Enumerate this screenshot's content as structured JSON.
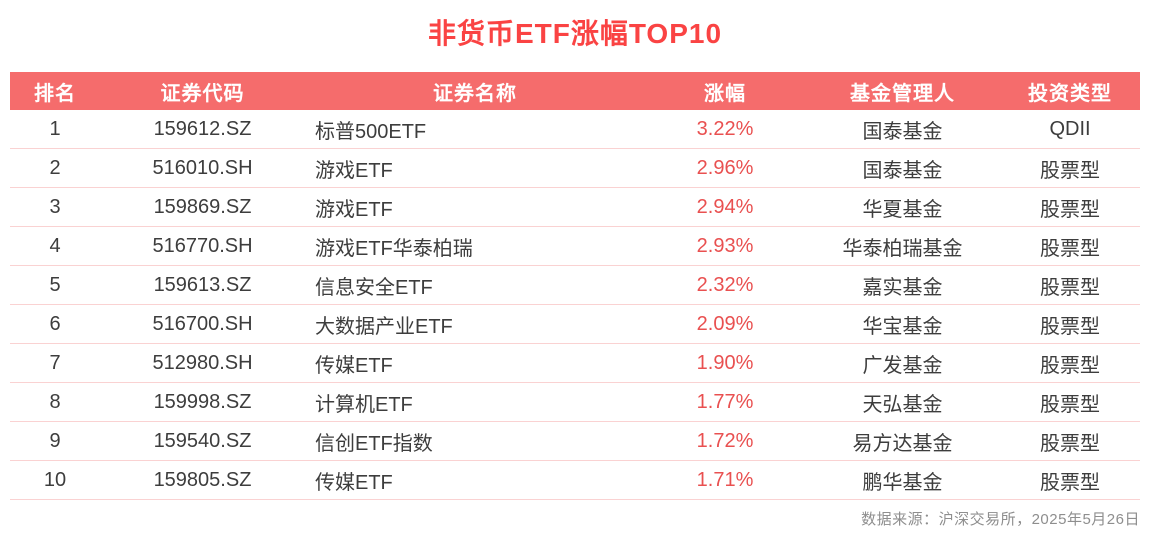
{
  "chart_data": {
    "type": "table",
    "title": "非货币ETF涨幅TOP10",
    "columns": [
      "排名",
      "证券代码",
      "证券名称",
      "涨幅",
      "基金管理人",
      "投资类型"
    ],
    "rows": [
      [
        "1",
        "159612.SZ",
        "标普500ETF",
        "3.22%",
        "国泰基金",
        "QDII"
      ],
      [
        "2",
        "516010.SH",
        "游戏ETF",
        "2.96%",
        "国泰基金",
        "股票型"
      ],
      [
        "3",
        "159869.SZ",
        "游戏ETF",
        "2.94%",
        "华夏基金",
        "股票型"
      ],
      [
        "4",
        "516770.SH",
        "游戏ETF华泰柏瑞",
        "2.93%",
        "华泰柏瑞基金",
        "股票型"
      ],
      [
        "5",
        "159613.SZ",
        "信息安全ETF",
        "2.32%",
        "嘉实基金",
        "股票型"
      ],
      [
        "6",
        "516700.SH",
        "大数据产业ETF",
        "2.09%",
        "华宝基金",
        "股票型"
      ],
      [
        "7",
        "512980.SH",
        "传媒ETF",
        "1.90%",
        "广发基金",
        "股票型"
      ],
      [
        "8",
        "159998.SZ",
        "计算机ETF",
        "1.77%",
        "天弘基金",
        "股票型"
      ],
      [
        "9",
        "159540.SZ",
        "信创ETF指数",
        "1.72%",
        "易方达基金",
        "股票型"
      ],
      [
        "10",
        "159805.SZ",
        "传媒ETF",
        "1.71%",
        "鹏华基金",
        "股票型"
      ]
    ],
    "change_values_pct": [
      3.22,
      2.96,
      2.94,
      2.93,
      2.32,
      2.09,
      1.9,
      1.77,
      1.72,
      1.71
    ],
    "layout": {
      "legend": "none",
      "grid": "horizontal row dividers only",
      "change_column_highlighted": true
    }
  },
  "footer": {
    "source_note": "数据来源：沪深交易所，2025年5月26日"
  },
  "colors": {
    "accent": "#FA4343",
    "header_bg": "#F56C6C",
    "change_text": "#E95050",
    "row_divider": "#FAD2D2",
    "body_text": "#3D3D3D",
    "footer_text": "#8E8E8E"
  }
}
